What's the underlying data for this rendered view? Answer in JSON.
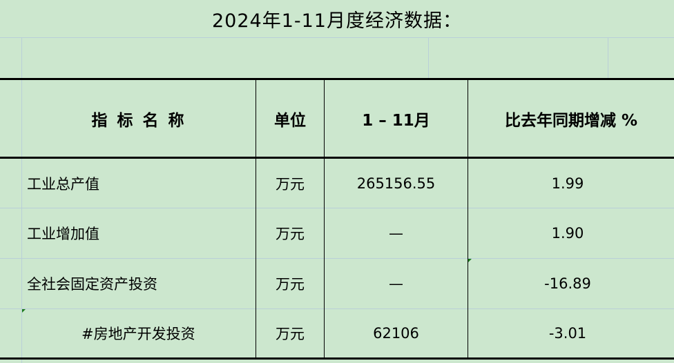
{
  "title": "2024年1-11月度经济数据：",
  "table": {
    "headers": [
      "指 标 名 称",
      "单位",
      "1 – 11月",
      "比去年同期增减 %"
    ],
    "rows": [
      {
        "name": "工业总产值",
        "unit": "万元",
        "value": "265156.55",
        "change": "1.99"
      },
      {
        "name": "工业增加值",
        "unit": "万元",
        "value": "—",
        "change": "1.90"
      },
      {
        "name": "全社会固定资产投资",
        "unit": "万元",
        "value": "—",
        "change": "-16.89"
      },
      {
        "name": "#房地产开发投资",
        "unit": "万元",
        "value": "62106",
        "change": "-3.01"
      }
    ]
  },
  "colors": {
    "background": "#cce7ce",
    "gridline": "#b9cfd8",
    "border": "#000000"
  }
}
